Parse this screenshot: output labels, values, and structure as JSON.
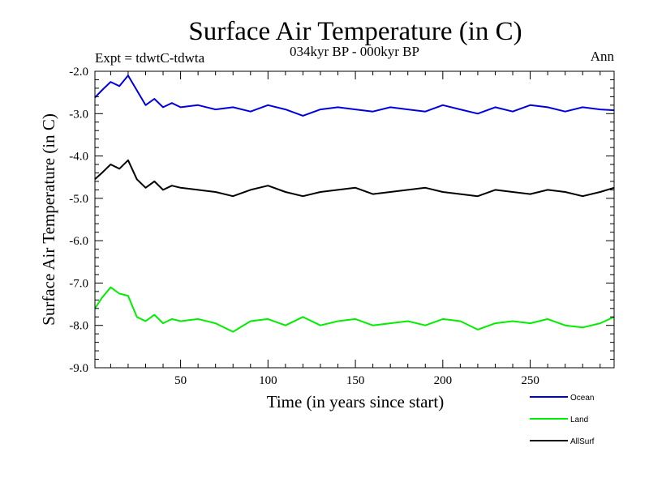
{
  "chart_data": {
    "type": "line",
    "title": "Surface Air Temperature (in C)",
    "subtitle_left": "Expt = tdwtC-tdwta",
    "subtitle_center": "034kyr BP - 000kyr BP",
    "subtitle_right": "Ann",
    "xlabel": "Time (in years since start)",
    "ylabel": "Surface Air Temperature (in C)",
    "xlim": [
      1,
      298
    ],
    "ylim": [
      -9.0,
      -2.0
    ],
    "xticks": [
      50,
      100,
      150,
      200,
      250
    ],
    "xtick_labels": [
      "50",
      "100",
      "150",
      "200",
      "250"
    ],
    "yticks": [
      -9.0,
      -8.0,
      -7.0,
      -6.0,
      -5.0,
      -4.0,
      -3.0,
      -2.0
    ],
    "ytick_labels": [
      "-9.0",
      "-8.0",
      "-7.0",
      "-6.0",
      "-5.0",
      "-4.0",
      "-3.0",
      "-2.0"
    ],
    "grid": false,
    "legend_position": "bottom-right",
    "x": [
      1,
      5,
      10,
      15,
      20,
      25,
      30,
      35,
      40,
      45,
      50,
      60,
      70,
      80,
      90,
      100,
      110,
      120,
      130,
      140,
      150,
      160,
      170,
      180,
      190,
      200,
      210,
      220,
      230,
      240,
      250,
      260,
      270,
      280,
      290,
      298
    ],
    "series": [
      {
        "name": "Ocean",
        "color": "#0000dd",
        "values": [
          -2.62,
          -2.45,
          -2.25,
          -2.35,
          -2.1,
          -2.45,
          -2.8,
          -2.65,
          -2.85,
          -2.75,
          -2.85,
          -2.8,
          -2.9,
          -2.85,
          -2.95,
          -2.8,
          -2.9,
          -3.05,
          -2.9,
          -2.85,
          -2.9,
          -2.95,
          -2.85,
          -2.9,
          -2.95,
          -2.8,
          -2.9,
          -3.0,
          -2.85,
          -2.95,
          -2.8,
          -2.85,
          -2.95,
          -2.85,
          -2.9,
          -2.92
        ]
      },
      {
        "name": "Land",
        "color": "#00ee00",
        "values": [
          -7.6,
          -7.35,
          -7.1,
          -7.25,
          -7.3,
          -7.8,
          -7.9,
          -7.75,
          -7.95,
          -7.85,
          -7.9,
          -7.85,
          -7.95,
          -8.15,
          -7.9,
          -7.85,
          -8.0,
          -7.8,
          -8.0,
          -7.9,
          -7.85,
          -8.0,
          -7.95,
          -7.9,
          -8.0,
          -7.85,
          -7.9,
          -8.1,
          -7.95,
          -7.9,
          -7.95,
          -7.85,
          -8.0,
          -8.05,
          -7.95,
          -7.8
        ]
      },
      {
        "name": "AllSurf",
        "color": "#000000",
        "values": [
          -4.55,
          -4.4,
          -4.2,
          -4.3,
          -4.1,
          -4.55,
          -4.75,
          -4.6,
          -4.8,
          -4.7,
          -4.75,
          -4.8,
          -4.85,
          -4.95,
          -4.8,
          -4.7,
          -4.85,
          -4.95,
          -4.85,
          -4.8,
          -4.75,
          -4.9,
          -4.85,
          -4.8,
          -4.75,
          -4.85,
          -4.9,
          -4.95,
          -4.8,
          -4.85,
          -4.9,
          -4.8,
          -4.85,
          -4.95,
          -4.85,
          -4.75
        ]
      }
    ]
  }
}
